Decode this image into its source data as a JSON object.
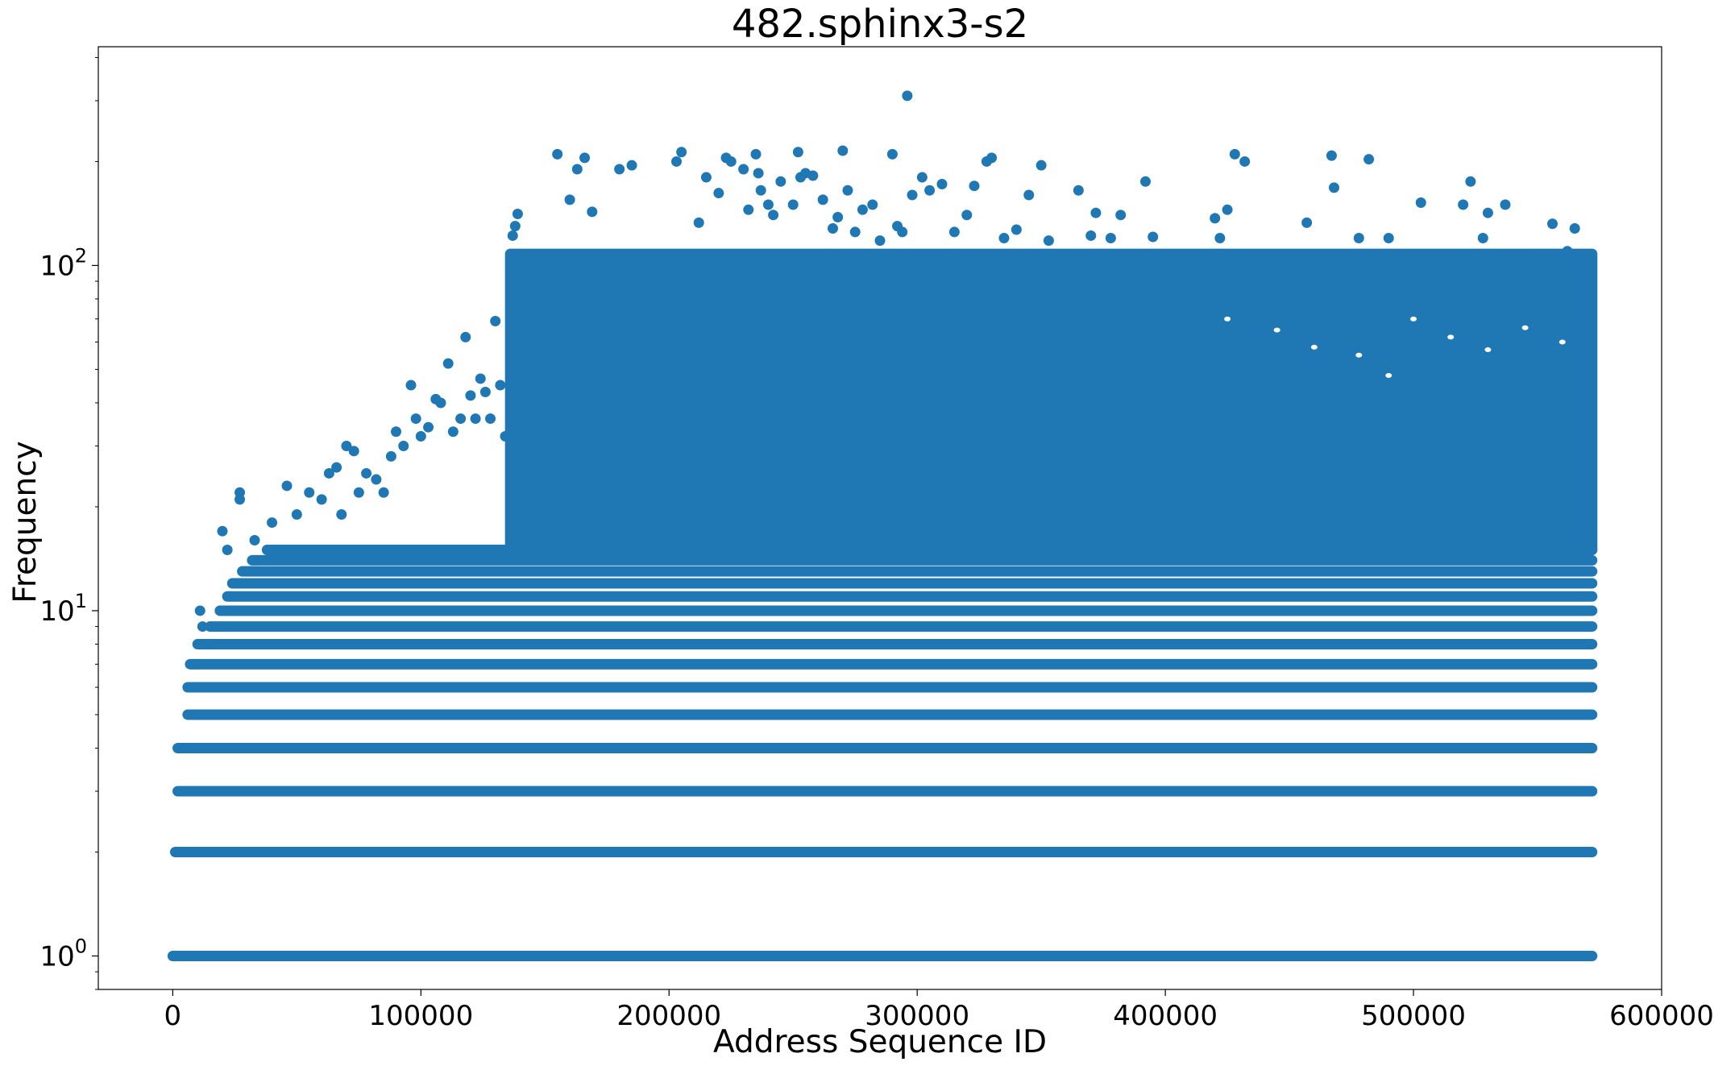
{
  "chart_data": {
    "type": "scatter",
    "title": "482.sphinx3-s2",
    "xlabel": "Address Sequence ID",
    "ylabel": "Frequency",
    "x_scale": "linear",
    "y_scale": "log",
    "xlim": [
      -30000,
      600000
    ],
    "ylim": [
      0.8,
      430
    ],
    "x_ticks": [
      0,
      100000,
      200000,
      300000,
      400000,
      500000,
      600000
    ],
    "x_tick_labels": [
      "0",
      "100000",
      "200000",
      "300000",
      "400000",
      "500000",
      "600000"
    ],
    "y_ticks": [
      1,
      10,
      100
    ],
    "y_tick_labels": [
      {
        "base": "10",
        "exp": "0"
      },
      {
        "base": "10",
        "exp": "1"
      },
      {
        "base": "10",
        "exp": "2"
      }
    ],
    "grid": false,
    "legend": "none",
    "marker_color": "#1f77b4",
    "series": [
      {
        "bands": [
          {
            "y": 1,
            "x_start": 0,
            "x_end": 572000
          },
          {
            "y": 2,
            "x_start": 1000,
            "x_end": 572000
          },
          {
            "y": 3,
            "x_start": 2000,
            "x_end": 572000
          },
          {
            "y": 4,
            "x_start": 2000,
            "x_end": 572000
          },
          {
            "y": 5,
            "x_start": 6000,
            "x_end": 572000
          },
          {
            "y": 6,
            "x_start": 6000,
            "x_end": 572000
          },
          {
            "y": 7,
            "x_start": 7000,
            "x_end": 572000
          },
          {
            "y": 8,
            "x_start": 10000,
            "x_end": 572000
          },
          {
            "y": 9,
            "x_start": 15000,
            "x_end": 572000
          },
          {
            "y": 10,
            "x_start": 19000,
            "x_end": 572000
          },
          {
            "y": 11,
            "x_start": 22000,
            "x_end": 572000
          },
          {
            "y": 12,
            "x_start": 24000,
            "x_end": 572000
          },
          {
            "y": 13,
            "x_start": 28000,
            "x_end": 572000
          },
          {
            "y": 14,
            "x_start": 32000,
            "x_end": 572000
          },
          {
            "y": 15,
            "x_start": 38000,
            "x_end": 572000
          }
        ],
        "dense_regions": [
          {
            "x_start": 136000,
            "x_end": 572000,
            "y_min": 15,
            "y_max": 108
          }
        ],
        "points": [
          [
            4000,
            4
          ],
          [
            3000,
            3
          ],
          [
            11000,
            10
          ],
          [
            9000,
            7
          ],
          [
            12000,
            9
          ],
          [
            15000,
            8
          ],
          [
            20000,
            17
          ],
          [
            22000,
            15
          ],
          [
            27000,
            22
          ],
          [
            27000,
            21
          ],
          [
            33000,
            16
          ],
          [
            40000,
            18
          ],
          [
            46000,
            23
          ],
          [
            50000,
            19
          ],
          [
            55000,
            22
          ],
          [
            60000,
            21
          ],
          [
            63000,
            25
          ],
          [
            66000,
            26
          ],
          [
            68000,
            19
          ],
          [
            70000,
            30
          ],
          [
            73000,
            29
          ],
          [
            75000,
            22
          ],
          [
            78000,
            25
          ],
          [
            82000,
            24
          ],
          [
            85000,
            22
          ],
          [
            88000,
            28
          ],
          [
            90000,
            33
          ],
          [
            93000,
            30
          ],
          [
            96000,
            45
          ],
          [
            98000,
            36
          ],
          [
            100000,
            32
          ],
          [
            103000,
            34
          ],
          [
            106000,
            41
          ],
          [
            108000,
            40
          ],
          [
            111000,
            52
          ],
          [
            113000,
            33
          ],
          [
            116000,
            36
          ],
          [
            118000,
            62
          ],
          [
            120000,
            42
          ],
          [
            122000,
            36
          ],
          [
            124000,
            47
          ],
          [
            126000,
            43
          ],
          [
            128000,
            36
          ],
          [
            130000,
            69
          ],
          [
            132000,
            45
          ],
          [
            134000,
            32
          ],
          [
            137000,
            122
          ],
          [
            138000,
            130
          ],
          [
            139000,
            141
          ],
          [
            155000,
            210
          ],
          [
            160000,
            155
          ],
          [
            163000,
            190
          ],
          [
            166000,
            205
          ],
          [
            169000,
            143
          ],
          [
            180000,
            190
          ],
          [
            185000,
            195
          ],
          [
            203000,
            200
          ],
          [
            205000,
            213
          ],
          [
            212000,
            133
          ],
          [
            215000,
            180
          ],
          [
            220000,
            162
          ],
          [
            223000,
            205
          ],
          [
            225000,
            200
          ],
          [
            230000,
            190
          ],
          [
            232000,
            145
          ],
          [
            235000,
            210
          ],
          [
            236000,
            185
          ],
          [
            237000,
            165
          ],
          [
            240000,
            150
          ],
          [
            242000,
            140
          ],
          [
            245000,
            175
          ],
          [
            250000,
            150
          ],
          [
            252000,
            213
          ],
          [
            253000,
            180
          ],
          [
            255000,
            185
          ],
          [
            258000,
            182
          ],
          [
            262000,
            155
          ],
          [
            266000,
            128
          ],
          [
            268000,
            138
          ],
          [
            270000,
            215
          ],
          [
            272000,
            165
          ],
          [
            275000,
            125
          ],
          [
            278000,
            145
          ],
          [
            282000,
            150
          ],
          [
            285000,
            118
          ],
          [
            290000,
            210
          ],
          [
            292000,
            130
          ],
          [
            294000,
            125
          ],
          [
            296000,
            310
          ],
          [
            298000,
            160
          ],
          [
            302000,
            180
          ],
          [
            305000,
            165
          ],
          [
            310000,
            172
          ],
          [
            315000,
            125
          ],
          [
            320000,
            140
          ],
          [
            323000,
            170
          ],
          [
            328000,
            200
          ],
          [
            330000,
            205
          ],
          [
            335000,
            120
          ],
          [
            340000,
            127
          ],
          [
            345000,
            160
          ],
          [
            350000,
            195
          ],
          [
            353000,
            118
          ],
          [
            365000,
            165
          ],
          [
            370000,
            122
          ],
          [
            372000,
            142
          ],
          [
            378000,
            120
          ],
          [
            382000,
            140
          ],
          [
            392000,
            175
          ],
          [
            395000,
            121
          ],
          [
            420000,
            137
          ],
          [
            422000,
            120
          ],
          [
            425000,
            145
          ],
          [
            428000,
            210
          ],
          [
            432000,
            200
          ],
          [
            457000,
            133
          ],
          [
            467000,
            208
          ],
          [
            468000,
            168
          ],
          [
            478000,
            120
          ],
          [
            482000,
            203
          ],
          [
            490000,
            120
          ],
          [
            503000,
            152
          ],
          [
            520000,
            150
          ],
          [
            523000,
            175
          ],
          [
            528000,
            120
          ],
          [
            530000,
            142
          ],
          [
            537000,
            150
          ],
          [
            556000,
            132
          ],
          [
            562000,
            110
          ],
          [
            565000,
            128
          ]
        ],
        "gaps": [
          [
            425000,
            70
          ],
          [
            445000,
            65
          ],
          [
            460000,
            58
          ],
          [
            478000,
            55
          ],
          [
            500000,
            70
          ],
          [
            515000,
            62
          ],
          [
            530000,
            57
          ],
          [
            545000,
            66
          ],
          [
            560000,
            60
          ],
          [
            490000,
            48
          ]
        ]
      }
    ]
  }
}
